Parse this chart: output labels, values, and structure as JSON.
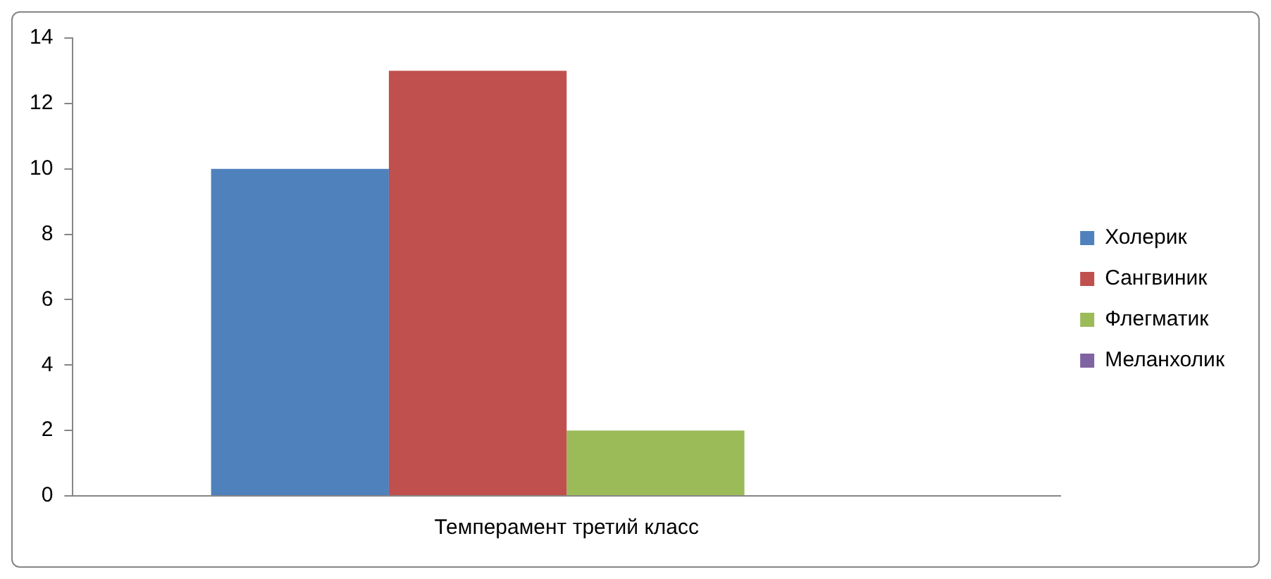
{
  "chart_data": {
    "type": "bar",
    "categories": [
      "Темперамент третий класс"
    ],
    "series": [
      {
        "name": "Холерик",
        "color": "#4f81bd",
        "values": [
          10
        ]
      },
      {
        "name": "Сангвиник",
        "color": "#c0504d",
        "values": [
          13
        ]
      },
      {
        "name": "Флегматик",
        "color": "#9bbb59",
        "values": [
          2
        ]
      },
      {
        "name": "Меланхолик",
        "color": "#8064a2",
        "values": [
          0
        ]
      }
    ],
    "ylim": [
      0,
      14
    ],
    "yticks": [
      0,
      2,
      4,
      6,
      8,
      10,
      12,
      14
    ],
    "legend": "right"
  }
}
